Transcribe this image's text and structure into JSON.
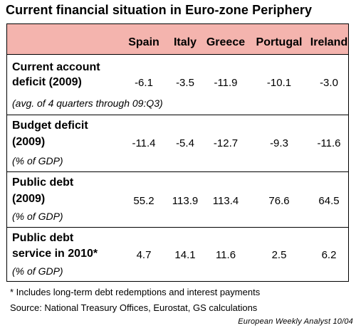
{
  "title": "Current financial situation in Euro-zone Periphery",
  "chart_data": {
    "type": "table",
    "columns": [
      "Spain",
      "Italy",
      "Greece",
      "Portugal",
      "Ireland"
    ],
    "rows": [
      {
        "label_lines": [
          "Current account",
          "deficit (2009)"
        ],
        "note": "(avg. of 4 quarters through 09:Q3)",
        "values": [
          "-6.1",
          "-3.5",
          "-11.9",
          "-10.1",
          "-3.0"
        ]
      },
      {
        "label_lines": [
          "Budget deficit",
          "(2009)"
        ],
        "note": "(% of GDP)",
        "values": [
          "-11.4",
          "-5.4",
          "-12.7",
          "-9.3",
          "-11.6"
        ]
      },
      {
        "label_lines": [
          "Public debt",
          "(2009)"
        ],
        "note": "(% of GDP)",
        "values": [
          "55.2",
          "113.9",
          "113.4",
          "76.6",
          "64.5"
        ]
      },
      {
        "label_lines": [
          "Public debt",
          "service in 2010*"
        ],
        "note": "(% of GDP)",
        "values": [
          "4.7",
          "14.1",
          "11.6",
          "2.5",
          "6.2"
        ]
      }
    ]
  },
  "footnotes": [
    "* Includes long-term debt redemptions and interest payments",
    "Source: National Treasury Offices, Eurostat, GS calculations"
  ],
  "credit": "European Weekly Analyst 10/04",
  "colors": {
    "header_band": "#f4b4ae",
    "border": "#000000",
    "background": "#ffffff"
  }
}
